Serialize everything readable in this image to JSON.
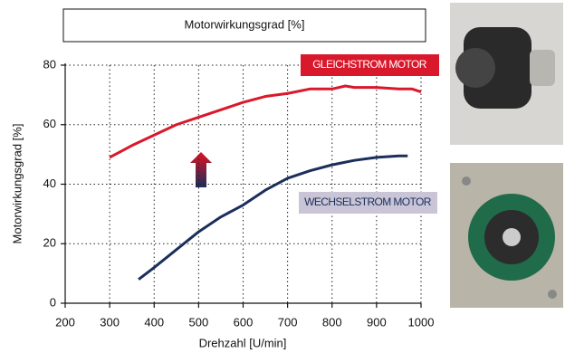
{
  "chart_data": {
    "type": "line",
    "title": "Motorwirkungsgrad [%]",
    "x_label": "Drehzahl [U/min]",
    "y_label": "Motorwirkungsgrad [%]",
    "xlim": [
      200,
      1000
    ],
    "xticks": [
      200,
      300,
      400,
      500,
      600,
      700,
      800,
      900,
      1000
    ],
    "ylim": [
      0,
      80
    ],
    "yticks": [
      0,
      20,
      40,
      60,
      80
    ],
    "grid": true,
    "series": [
      {
        "name": "GLEICHSTROM MOTOR",
        "color": "#d9182b",
        "x": [
          300,
          350,
          400,
          450,
          500,
          550,
          600,
          650,
          700,
          750,
          800,
          830,
          850,
          900,
          950,
          980,
          1000
        ],
        "values": [
          49,
          53,
          56.5,
          60,
          62.5,
          65,
          67.5,
          69.5,
          70.5,
          72,
          72,
          73,
          72.5,
          72.5,
          72,
          72,
          71
        ]
      },
      {
        "name": "WECHSELSTROM MOTOR",
        "color": "#1b2e5c",
        "x": [
          365,
          400,
          450,
          500,
          550,
          600,
          650,
          700,
          750,
          800,
          850,
          900,
          950,
          970
        ],
        "values": [
          8,
          12,
          18,
          24,
          29,
          33,
          38,
          42,
          44.5,
          46.5,
          48,
          49,
          49.5,
          49.5
        ]
      }
    ]
  }
}
